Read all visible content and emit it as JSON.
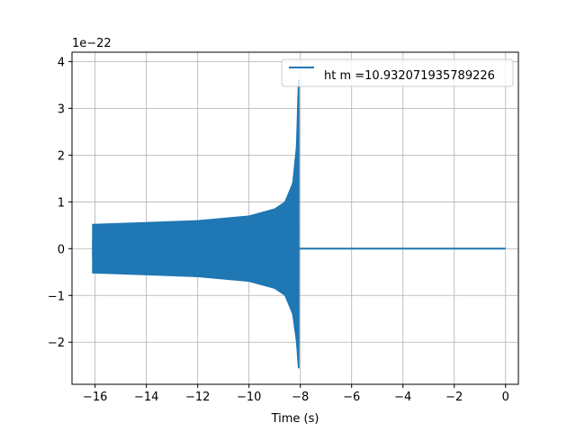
{
  "chart_data": {
    "type": "line",
    "title": "",
    "xlabel": "Time (s)",
    "ylabel": "",
    "y_offset_text": "1e−22",
    "xlim": [
      -16.9,
      0.5
    ],
    "ylim": [
      -2.9,
      4.2
    ],
    "x_ticks": [
      -16,
      -14,
      -12,
      -10,
      -8,
      -6,
      -4,
      -2,
      0
    ],
    "x_tick_labels": [
      "−16",
      "−14",
      "−12",
      "−10",
      "−8",
      "−6",
      "−4",
      "−2",
      "0"
    ],
    "y_ticks": [
      -2,
      -1,
      0,
      1,
      2,
      3,
      4
    ],
    "y_tick_labels": [
      "−2",
      "−1",
      "0",
      "1",
      "2",
      "3",
      "4"
    ],
    "grid": true,
    "legend_position": "top-right",
    "series": [
      {
        "name": "ht m =10.932071935789226",
        "color": "#1f77b4",
        "x_start": -16.1,
        "chirp_end": -8.05,
        "x_end": 0.0,
        "envelope_upper": {
          "x": [
            -16.1,
            -14,
            -12,
            -10,
            -9,
            -8.6,
            -8.3,
            -8.15,
            -8.08,
            -8.05
          ],
          "y": [
            0.52,
            0.56,
            0.6,
            0.7,
            0.85,
            1.0,
            1.4,
            2.2,
            3.6,
            3.6
          ]
        },
        "envelope_lower": {
          "x": [
            -16.1,
            -14,
            -12,
            -10,
            -9,
            -8.6,
            -8.3,
            -8.15,
            -8.08,
            -8.05
          ],
          "y": [
            -0.52,
            -0.56,
            -0.6,
            -0.7,
            -0.85,
            -1.0,
            -1.4,
            -2.0,
            -2.55,
            -2.55
          ]
        },
        "after_merger_value": 0.0
      }
    ]
  }
}
